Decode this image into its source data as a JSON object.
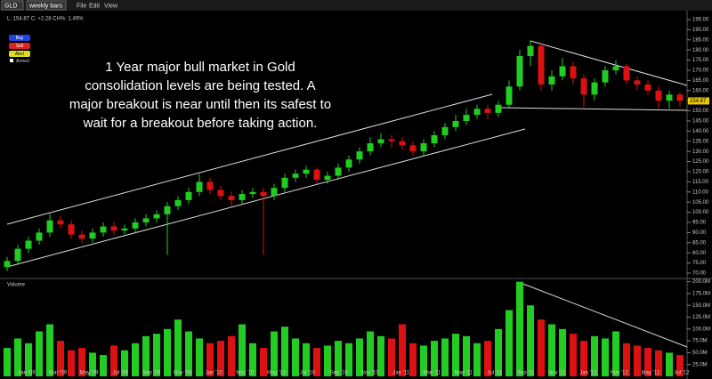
{
  "toolbar": {
    "symbol": "GLD",
    "period": "weekly bars",
    "menu": [
      "File",
      "Edit",
      "View"
    ],
    "quote": "L: 154.87 C: +2.28 CH%: 1.49%",
    "buttons": [
      "Buy",
      "Sell",
      "Alert"
    ],
    "armed": "Armed"
  },
  "chart_data": [
    {
      "type": "candlestick",
      "annotation": [
        "1 Year major bull market in Gold",
        "consolidation levels are being tested. A",
        "major breakout is near until then its safest to",
        "wait for a breakout before taking action."
      ],
      "up_color": "#22cc22",
      "down_color": "#dd1111",
      "open": [
        73,
        76,
        82,
        86,
        90,
        96,
        94,
        89,
        87,
        90,
        93,
        91,
        92,
        95,
        97,
        99,
        103,
        106,
        110,
        115,
        111,
        108,
        106,
        109,
        110,
        108,
        112,
        117,
        119,
        121,
        116,
        118,
        122,
        126,
        130,
        134,
        136,
        135,
        133,
        130,
        134,
        138,
        142,
        145,
        148,
        151,
        149,
        153,
        162,
        177,
        182,
        163,
        167,
        172,
        166,
        158,
        164,
        170,
        172,
        165,
        163,
        160,
        155,
        158
      ],
      "high": [
        78,
        84,
        88,
        92,
        100,
        98,
        96,
        91,
        92,
        95,
        95,
        94,
        97,
        99,
        101,
        105,
        108,
        112,
        119,
        117,
        113,
        110,
        111,
        112,
        112,
        114,
        119,
        121,
        123,
        122,
        120,
        124,
        128,
        132,
        137,
        139,
        138,
        137,
        135,
        136,
        140,
        144,
        148,
        151,
        153,
        153,
        155,
        165,
        180,
        185,
        183,
        170,
        176,
        174,
        168,
        166,
        172,
        175,
        173,
        167,
        165,
        162,
        160,
        159
      ],
      "low": [
        71,
        74,
        80,
        84,
        88,
        92,
        87,
        85,
        85,
        88,
        89,
        89,
        90,
        93,
        95,
        79,
        101,
        104,
        108,
        109,
        106,
        103,
        104,
        107,
        79,
        106,
        110,
        115,
        117,
        114,
        114,
        116,
        120,
        124,
        128,
        132,
        132,
        131,
        128,
        128,
        132,
        136,
        140,
        143,
        146,
        146,
        147,
        151,
        160,
        172,
        160,
        160,
        165,
        163,
        152,
        155,
        162,
        168,
        163,
        160,
        158,
        151,
        151,
        152
      ],
      "close": [
        76,
        82,
        86,
        90,
        96,
        94,
        89,
        87,
        90,
        93,
        91,
        92,
        95,
        97,
        99,
        103,
        106,
        110,
        115,
        111,
        108,
        106,
        109,
        110,
        108,
        112,
        117,
        119,
        121,
        116,
        118,
        122,
        126,
        130,
        134,
        136,
        135,
        133,
        130,
        134,
        138,
        142,
        145,
        148,
        151,
        149,
        153,
        162,
        177,
        182,
        163,
        167,
        172,
        166,
        158,
        164,
        170,
        172,
        165,
        163,
        160,
        155,
        158,
        155
      ],
      "last_price": 154.87,
      "ylim": [
        67.8,
        198.5
      ],
      "yticks": [
        {
          "value": 70,
          "label": "70.00"
        },
        {
          "value": 75,
          "label": "75.00"
        },
        {
          "value": 80,
          "label": "80.00"
        },
        {
          "value": 85,
          "label": "85.00"
        },
        {
          "value": 90,
          "label": "90.00"
        },
        {
          "value": 95,
          "label": "95.00"
        },
        {
          "value": 100,
          "label": "100.00"
        },
        {
          "value": 105,
          "label": "105.00"
        },
        {
          "value": 110,
          "label": "110.00"
        },
        {
          "value": 115,
          "label": "115.00"
        },
        {
          "value": 120,
          "label": "120.00"
        },
        {
          "value": 125,
          "label": "125.00"
        },
        {
          "value": 130,
          "label": "130.00"
        },
        {
          "value": 135,
          "label": "135.00"
        },
        {
          "value": 140,
          "label": "140.00"
        },
        {
          "value": 145,
          "label": "145.00"
        },
        {
          "value": 150,
          "label": "150.00"
        },
        {
          "value": 155,
          "label": "155.00"
        },
        {
          "value": 160,
          "label": "160.00"
        },
        {
          "value": 165,
          "label": "165.00"
        },
        {
          "value": 170,
          "label": "170.00"
        },
        {
          "value": 175,
          "label": "175.00"
        },
        {
          "value": 180,
          "label": "180.00"
        },
        {
          "value": 185,
          "label": "185.00"
        },
        {
          "value": 190,
          "label": "190.00"
        },
        {
          "value": 195,
          "label": "195.00"
        }
      ]
    },
    {
      "type": "bar",
      "title": "Volume",
      "values": [
        60,
        80,
        70,
        95,
        110,
        75,
        55,
        60,
        50,
        45,
        65,
        55,
        70,
        85,
        90,
        100,
        120,
        95,
        80,
        70,
        75,
        85,
        110,
        70,
        60,
        95,
        105,
        80,
        70,
        60,
        65,
        75,
        70,
        80,
        95,
        85,
        80,
        110,
        70,
        65,
        75,
        80,
        90,
        85,
        70,
        75,
        100,
        140,
        200,
        150,
        120,
        110,
        100,
        90,
        75,
        85,
        80,
        95,
        70,
        65,
        60,
        55,
        50,
        45
      ],
      "ylim": [
        0,
        205
      ],
      "yticks": [
        {
          "value": 25,
          "label": "25.0M"
        },
        {
          "value": 50,
          "label": "50.0M"
        },
        {
          "value": 75,
          "label": "75.0M"
        },
        {
          "value": 100,
          "label": "100.0M"
        },
        {
          "value": 125,
          "label": "125.0M"
        },
        {
          "value": 150,
          "label": "150.0M"
        },
        {
          "value": 175,
          "label": "175.0M"
        },
        {
          "value": 200,
          "label": "200.0M"
        }
      ],
      "x_labels": [
        "Jan '09",
        "Mar '09",
        "May '09",
        "Jul '09",
        "Sep '09",
        "Nov '09",
        "Jan '10",
        "Mar '10",
        "May '10",
        "Jul '10",
        "Sep '10",
        "Nov '10",
        "Jan '11",
        "Mar '11",
        "May '11",
        "Jul '11",
        "Sep '11",
        "Nov '11",
        "Jan '12",
        "Mar '12",
        "May '12",
        "Jul '12"
      ]
    }
  ]
}
